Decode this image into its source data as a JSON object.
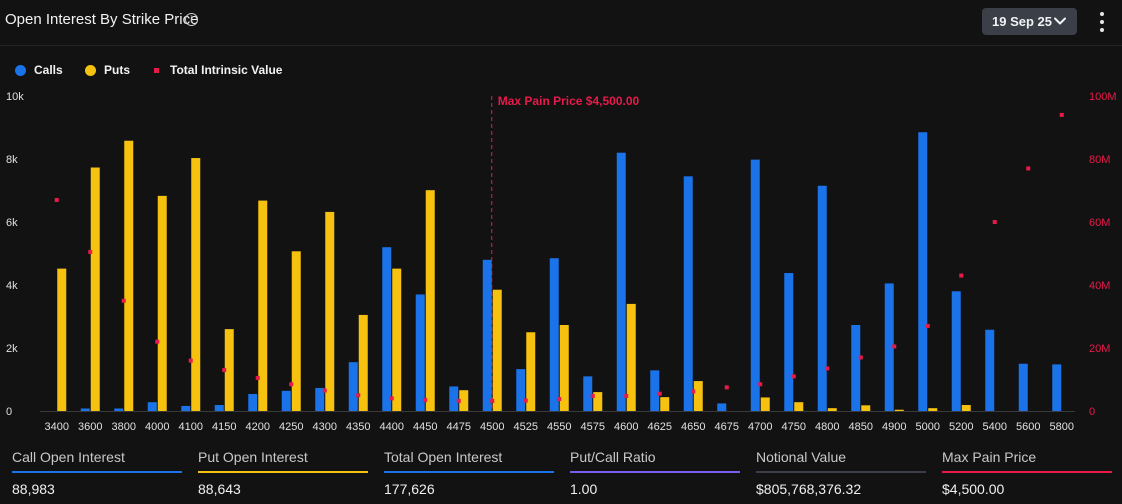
{
  "header": {
    "title": "Open Interest By Strike Price",
    "date_label": "19 Sep 25"
  },
  "legend": {
    "calls": "Calls",
    "puts": "Puts",
    "tiv": "Total Intrinsic Value"
  },
  "colors": {
    "calls": "#1a73e8",
    "puts": "#f6c20f",
    "tiv": "#e8194b",
    "maxpain": "#e8194b"
  },
  "chart_data": {
    "type": "bar",
    "categories": [
      "3400",
      "3600",
      "3800",
      "4000",
      "4100",
      "4150",
      "4200",
      "4250",
      "4300",
      "4350",
      "4400",
      "4450",
      "4475",
      "4500",
      "4525",
      "4550",
      "4575",
      "4600",
      "4625",
      "4650",
      "4675",
      "4700",
      "4750",
      "4800",
      "4850",
      "4900",
      "5000",
      "5200",
      "5400",
      "5600",
      "5800"
    ],
    "series": [
      {
        "name": "Calls",
        "axis": "left",
        "values": [
          0,
          80,
          80,
          280,
          160,
          190,
          540,
          640,
          730,
          1550,
          5200,
          3700,
          780,
          4800,
          1330,
          4850,
          1100,
          8200,
          1290,
          7450,
          240,
          7980,
          4380,
          7150,
          2730,
          4050,
          8850,
          3800,
          2580,
          1500,
          1480
        ]
      },
      {
        "name": "Puts",
        "axis": "left",
        "values": [
          4520,
          7730,
          8580,
          6830,
          8030,
          2600,
          6680,
          5070,
          6320,
          3050,
          4520,
          7010,
          660,
          3850,
          2500,
          2730,
          600,
          3400,
          440,
          950,
          0,
          430,
          280,
          90,
          180,
          40,
          90,
          190,
          0,
          0,
          0
        ]
      },
      {
        "name": "Total Intrinsic Value",
        "axis": "right",
        "type": "scatter",
        "values": [
          67,
          50.5,
          35,
          22,
          16,
          13,
          10.5,
          8.5,
          6.5,
          5,
          4,
          3.5,
          3.2,
          3.2,
          3.3,
          3.8,
          4.8,
          4.8,
          5.5,
          6.2,
          7.5,
          8.5,
          11,
          13.5,
          17,
          20.5,
          27,
          43,
          60,
          77,
          94
        ]
      }
    ],
    "y_left": {
      "ticks": [
        "0",
        "2k",
        "4k",
        "6k",
        "8k",
        "10k"
      ],
      "ylim": [
        0,
        10000
      ]
    },
    "y_right": {
      "ticks": [
        "0",
        "20M",
        "40M",
        "60M",
        "80M",
        "100M"
      ],
      "ylim": [
        0,
        100
      ]
    },
    "max_pain": {
      "label": "Max Pain Price $4,500.00",
      "strike": "4500"
    },
    "grid": false,
    "legend_position": "top-left"
  },
  "stats": [
    {
      "label": "Call Open Interest",
      "value": "88,983",
      "color": "#1a73e8"
    },
    {
      "label": "Put Open Interest",
      "value": "88,643",
      "color": "#f6c20f"
    },
    {
      "label": "Total Open Interest",
      "value": "177,626",
      "color": "#1a73e8"
    },
    {
      "label": "Put/Call Ratio",
      "value": "1.00",
      "color": "#7b5cf0"
    },
    {
      "label": "Notional Value",
      "value": "$805,768,376.32",
      "color": "#3a3f48"
    },
    {
      "label": "Max Pain Price",
      "value": "$4,500.00",
      "color": "#e8194b"
    }
  ]
}
